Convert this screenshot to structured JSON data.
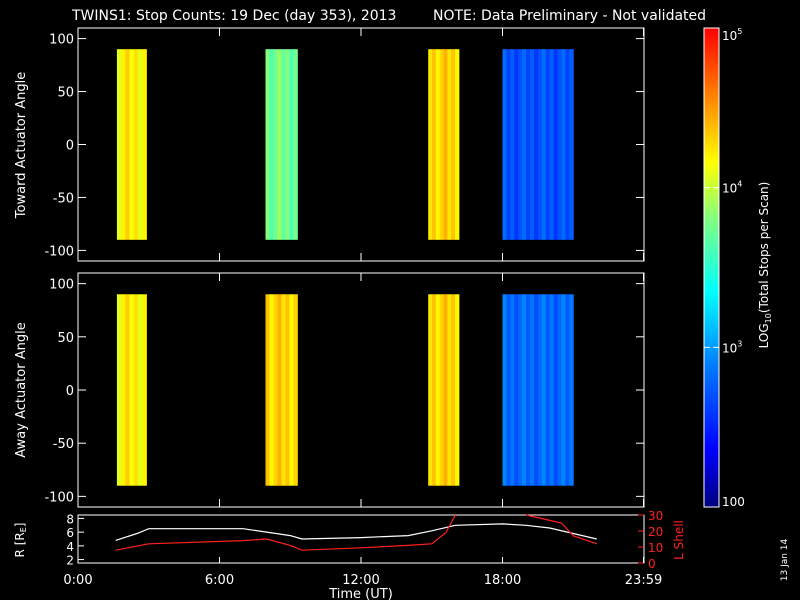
{
  "header": {
    "title": "TWINS1: Stop Counts: 19 Dec (day 353), 2013",
    "note": "NOTE: Data Preliminary - Not validated",
    "note_color": "#ff2020"
  },
  "side_stamp": "13 Jan 14",
  "chart_data": [
    {
      "type": "heatmap",
      "ylabel": "Toward Actuator Angle",
      "ylim": [
        -110,
        110
      ],
      "yticks": [
        100,
        50,
        0,
        -50,
        -100
      ],
      "xlim": [
        0,
        24
      ],
      "coverage": [
        {
          "start": 1.65,
          "end": 2.9,
          "level": 4.2
        },
        {
          "start": 7.95,
          "end": 9.3,
          "level": 3.75
        },
        {
          "start": 14.85,
          "end": 16.15,
          "level": 4.3
        },
        {
          "start": 18.0,
          "end": 21.0,
          "level": 2.7
        }
      ]
    },
    {
      "type": "heatmap",
      "ylabel": "Away Actuator Angle",
      "ylim": [
        -110,
        110
      ],
      "yticks": [
        100,
        50,
        0,
        -50,
        -100
      ],
      "xlim": [
        0,
        24
      ],
      "coverage": [
        {
          "start": 1.65,
          "end": 2.9,
          "level": 4.2
        },
        {
          "start": 7.95,
          "end": 9.3,
          "level": 4.3
        },
        {
          "start": 14.85,
          "end": 16.15,
          "level": 4.3
        },
        {
          "start": 18.0,
          "end": 21.0,
          "level": 2.8
        }
      ]
    },
    {
      "type": "line",
      "ylabel": "R [R",
      "ylabel_sub": "E",
      "ylabel_close": "]",
      "y2label": "L Shell",
      "y2label_color": "#ff2020",
      "xlabel": "Time (UT)",
      "xticks": [
        "0:00",
        "6:00",
        "12:00",
        "18:00",
        "23:59"
      ],
      "xtick_values": [
        0,
        6,
        12,
        18,
        23.98
      ],
      "yticks": [
        2,
        4,
        6,
        8
      ],
      "y2ticks": [
        0,
        10,
        20,
        30
      ],
      "ylim": [
        1.5,
        8.5
      ],
      "y2lim": [
        0,
        30
      ],
      "series": [
        {
          "axis": "left",
          "color": "#ffffff",
          "x": [
            1.6,
            2.5,
            3.0,
            7.0,
            9.0,
            9.5,
            12.0,
            14.0,
            15.0,
            16.0,
            18.0,
            19.0,
            20.0,
            21.0,
            22.0
          ],
          "y": [
            4.8,
            5.8,
            6.5,
            6.5,
            5.5,
            5.0,
            5.2,
            5.5,
            6.2,
            7.0,
            7.2,
            7.0,
            6.6,
            5.8,
            5.0
          ]
        },
        {
          "axis": "right",
          "color": "#ff2020",
          "x": [
            1.6,
            3.0,
            7.0,
            8.0,
            9.0,
            9.5,
            12.0,
            14.0,
            15.0,
            15.6,
            16.0
          ],
          "y": [
            8.0,
            12.0,
            14.0,
            15.0,
            11.0,
            8.0,
            9.5,
            11.0,
            12.0,
            19.0,
            31.0
          ]
        },
        {
          "axis": "right",
          "color": "#ff2020",
          "x": [
            19.0,
            20.5,
            21.0,
            22.0
          ],
          "y": [
            31.0,
            25.0,
            17.0,
            12.0
          ]
        }
      ]
    }
  ],
  "colorbar": {
    "label": "LOG",
    "label_sub": "10",
    "label_rest": "(Total Stops per Scan)",
    "ticks": [
      {
        "base": "10",
        "exp": "5",
        "log": 5
      },
      {
        "base": "10",
        "exp": "4",
        "log": 4
      },
      {
        "base": "10",
        "exp": "3",
        "log": 3
      },
      {
        "base": "100",
        "exp": "",
        "log": 2
      }
    ],
    "range": [
      2,
      5
    ]
  }
}
